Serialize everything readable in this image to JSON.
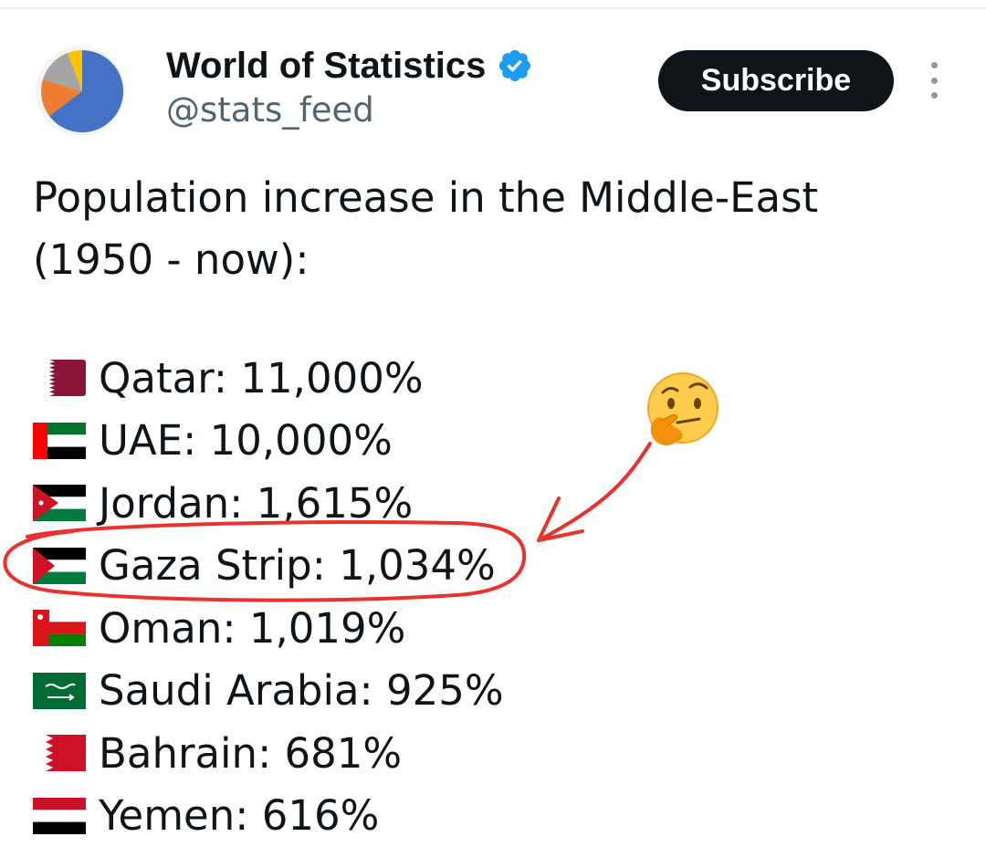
{
  "account": {
    "display_name": "World of Statistics",
    "handle": "@stats_feed",
    "avatar_icon": "pie-chart-avatar",
    "verified_icon": "verified-badge-icon"
  },
  "actions": {
    "subscribe_label": "Subscribe",
    "more_icon": "more-vertical-icon"
  },
  "tweet": {
    "text_lines": [
      "Population increase in the Middle-East",
      "(1950 - now):"
    ],
    "stats": [
      {
        "country": "Qatar",
        "value": "11,000%",
        "flag_icon": "qatar-flag-icon",
        "row": "Qatar: 11,000%"
      },
      {
        "country": "UAE",
        "value": "10,000%",
        "flag_icon": "uae-flag-icon",
        "row": "UAE: 10,000%"
      },
      {
        "country": "Jordan",
        "value": "1,615%",
        "flag_icon": "jordan-flag-icon",
        "row": "Jordan: 1,615%"
      },
      {
        "country": "Gaza Strip",
        "value": "1,034%",
        "flag_icon": "palestine-flag-icon",
        "row": "Gaza Strip: 1,034%",
        "highlighted": true
      },
      {
        "country": "Oman",
        "value": "1,019%",
        "flag_icon": "oman-flag-icon",
        "row": "Oman: 1,019%"
      },
      {
        "country": "Saudi Arabia",
        "value": "925%",
        "flag_icon": "saudi-arabia-flag-icon",
        "row": "Saudi Arabia: 925%"
      },
      {
        "country": "Bahrain",
        "value": "681%",
        "flag_icon": "bahrain-flag-icon",
        "row": "Bahrain: 681%"
      },
      {
        "country": "Yemen",
        "value": "616%",
        "flag_icon": "yemen-flag-icon",
        "row": "Yemen: 616%"
      }
    ]
  },
  "annotation": {
    "emoji_icon": "thinking-face-emoji",
    "circle_color": "#e8322e",
    "arrow_color": "#e8322e"
  },
  "colors": {
    "verified": "#1d9bf0",
    "button_bg": "#0f1419",
    "handle": "#536471"
  }
}
